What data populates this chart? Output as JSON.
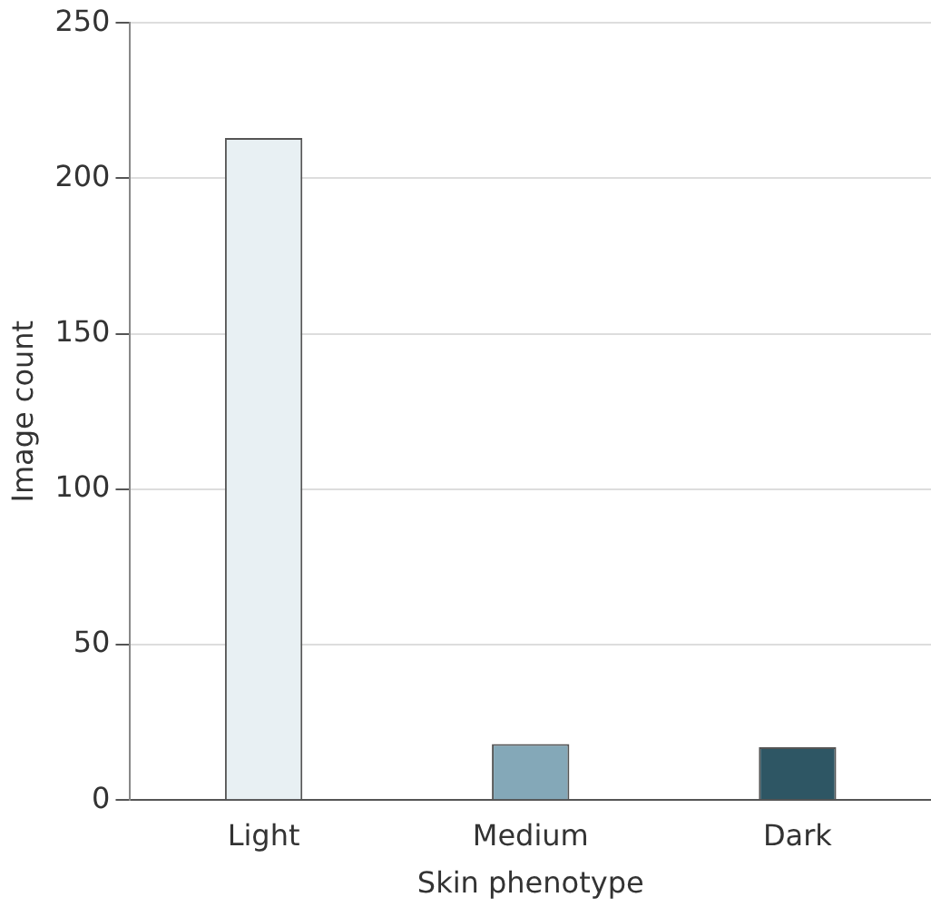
{
  "chart_data": {
    "type": "bar",
    "xlabel": "Skin phenotype",
    "ylabel": "Image count",
    "categories": [
      "Light",
      "Medium",
      "Dark"
    ],
    "values": [
      213,
      18,
      17
    ],
    "colors": [
      "#e8f0f3",
      "#84a8b8",
      "#2e5664"
    ],
    "ylim": [
      0,
      250
    ],
    "yticks": [
      0,
      50,
      100,
      150,
      200,
      250
    ],
    "grid": "y",
    "legend": false
  }
}
